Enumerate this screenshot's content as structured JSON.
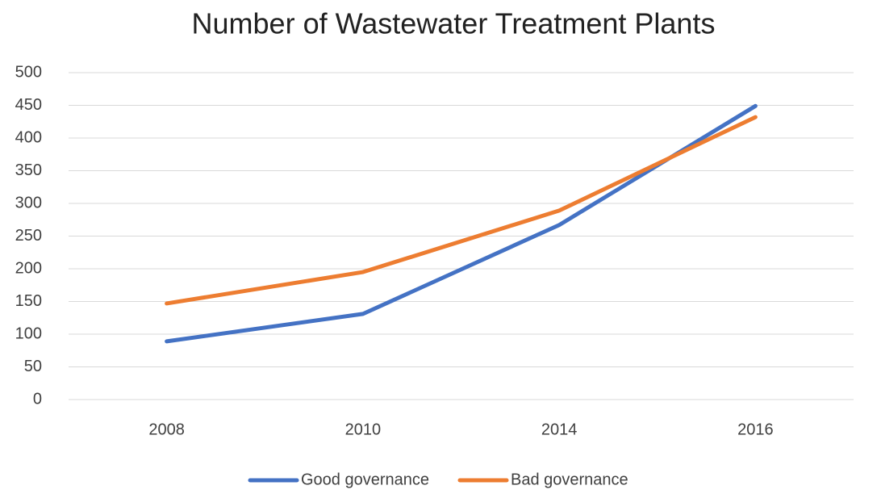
{
  "chart_data": {
    "type": "line",
    "title": "Number of Wastewater Treatment Plants",
    "categories": [
      "2008",
      "2010",
      "2014",
      "2016"
    ],
    "series": [
      {
        "name": "Good governance",
        "color": "#4472c4",
        "values": [
          89,
          131,
          267,
          449
        ]
      },
      {
        "name": "Bad governance",
        "color": "#ed7d31",
        "values": [
          147,
          195,
          289,
          432
        ]
      }
    ],
    "ylim": [
      0,
      500
    ],
    "yticks": [
      0,
      50,
      100,
      150,
      200,
      250,
      300,
      350,
      400,
      450,
      500
    ],
    "grid": true,
    "legend": "bottom"
  }
}
